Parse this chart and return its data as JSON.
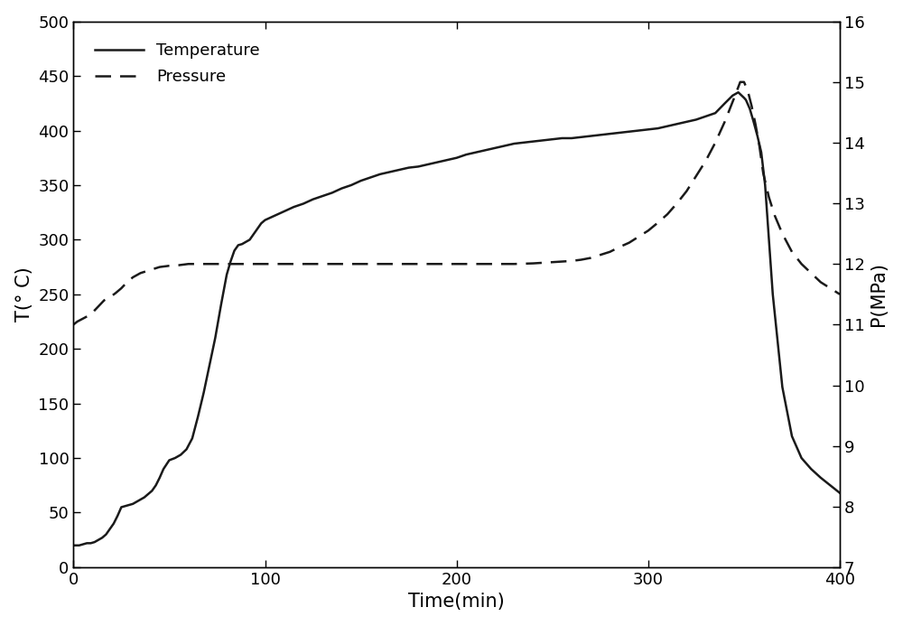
{
  "title": "",
  "xlabel": "Time(min)",
  "ylabel_left": "T(° C)",
  "ylabel_right": "P(MPa)",
  "xlim": [
    0,
    400
  ],
  "ylim_left": [
    0,
    500
  ],
  "ylim_right": [
    7,
    16
  ],
  "yticks_left": [
    0,
    50,
    100,
    150,
    200,
    250,
    300,
    350,
    400,
    450,
    500
  ],
  "yticks_right": [
    7,
    8,
    9,
    10,
    11,
    12,
    13,
    14,
    15,
    16
  ],
  "xticks": [
    0,
    100,
    200,
    300,
    400
  ],
  "background_color": "#ffffff",
  "line_color": "#1a1a1a",
  "temperature": {
    "time": [
      0,
      1,
      2,
      3,
      5,
      7,
      9,
      11,
      13,
      15,
      17,
      19,
      21,
      23,
      25,
      27,
      29,
      31,
      33,
      35,
      37,
      39,
      41,
      43,
      45,
      47,
      50,
      53,
      56,
      59,
      62,
      65,
      68,
      71,
      74,
      77,
      80,
      82,
      84,
      86,
      88,
      90,
      92,
      94,
      96,
      98,
      100,
      105,
      110,
      115,
      120,
      125,
      130,
      135,
      140,
      145,
      150,
      155,
      160,
      165,
      170,
      175,
      180,
      185,
      190,
      195,
      200,
      205,
      210,
      215,
      220,
      225,
      230,
      235,
      240,
      245,
      250,
      255,
      260,
      265,
      270,
      275,
      280,
      285,
      290,
      295,
      300,
      305,
      310,
      315,
      320,
      325,
      330,
      335,
      340,
      344,
      347,
      350,
      351,
      353,
      355,
      357,
      359,
      361,
      365,
      370,
      375,
      380,
      385,
      390,
      395,
      400
    ],
    "value": [
      20,
      20,
      20,
      20,
      21,
      22,
      22,
      23,
      25,
      27,
      30,
      35,
      40,
      47,
      55,
      56,
      57,
      58,
      60,
      62,
      64,
      67,
      70,
      75,
      82,
      90,
      98,
      100,
      103,
      108,
      118,
      138,
      160,
      185,
      210,
      240,
      268,
      280,
      290,
      295,
      296,
      298,
      300,
      305,
      310,
      315,
      318,
      322,
      326,
      330,
      333,
      337,
      340,
      343,
      347,
      350,
      354,
      357,
      360,
      362,
      364,
      366,
      367,
      369,
      371,
      373,
      375,
      378,
      380,
      382,
      384,
      386,
      388,
      389,
      390,
      391,
      392,
      393,
      393,
      394,
      395,
      396,
      397,
      398,
      399,
      400,
      401,
      402,
      404,
      406,
      408,
      410,
      413,
      416,
      425,
      432,
      435,
      430,
      428,
      420,
      408,
      395,
      380,
      350,
      250,
      165,
      120,
      100,
      90,
      82,
      75,
      68
    ]
  },
  "pressure": {
    "time": [
      0,
      2,
      5,
      8,
      10,
      13,
      16,
      19,
      22,
      25,
      28,
      31,
      35,
      40,
      45,
      50,
      55,
      60,
      65,
      70,
      75,
      80,
      90,
      100,
      110,
      120,
      130,
      140,
      150,
      160,
      170,
      180,
      190,
      200,
      210,
      220,
      230,
      240,
      250,
      260,
      265,
      270,
      275,
      280,
      285,
      290,
      295,
      300,
      305,
      310,
      315,
      320,
      325,
      330,
      335,
      340,
      345,
      348,
      350,
      352,
      354,
      356,
      358,
      360,
      363,
      366,
      370,
      375,
      380,
      385,
      390,
      395,
      400
    ],
    "value": [
      11.0,
      11.05,
      11.1,
      11.15,
      11.2,
      11.3,
      11.4,
      11.45,
      11.52,
      11.6,
      11.7,
      11.78,
      11.85,
      11.9,
      11.95,
      11.97,
      11.98,
      12.0,
      12.0,
      12.0,
      12.0,
      12.0,
      12.0,
      12.0,
      12.0,
      12.0,
      12.0,
      12.0,
      12.0,
      12.0,
      12.0,
      12.0,
      12.0,
      12.0,
      12.0,
      12.0,
      12.0,
      12.01,
      12.03,
      12.05,
      12.07,
      12.1,
      12.15,
      12.2,
      12.28,
      12.35,
      12.45,
      12.55,
      12.68,
      12.82,
      13.0,
      13.2,
      13.45,
      13.7,
      14.0,
      14.35,
      14.75,
      15.0,
      15.0,
      14.85,
      14.6,
      14.3,
      13.95,
      13.5,
      13.1,
      12.8,
      12.5,
      12.2,
      12.0,
      11.85,
      11.7,
      11.6,
      11.5
    ]
  },
  "legend": {
    "temperature_label": "Temperature",
    "pressure_label": "Pressure"
  }
}
